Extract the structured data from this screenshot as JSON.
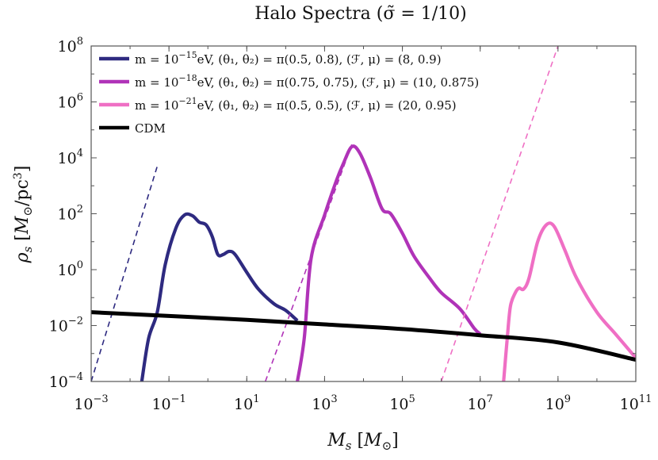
{
  "chart_data": {
    "type": "line",
    "title": "Halo Spectra (σ̃ = 1/10)",
    "xlabel": "M_s [M_⊙]",
    "ylabel": "ρ_s [M_⊙/pc³]",
    "x_scale": "log",
    "y_scale": "log",
    "xlim": [
      0.001,
      100000000000
    ],
    "ylim": [
      0.0001,
      100000000
    ],
    "x_ticks": [
      {
        "value": 0.001,
        "label": "10^-3"
      },
      {
        "value": 0.1,
        "label": "10^-1"
      },
      {
        "value": 10,
        "label": "10^1"
      },
      {
        "value": 1000,
        "label": "10^3"
      },
      {
        "value": 100000,
        "label": "10^5"
      },
      {
        "value": 10000000,
        "label": "10^7"
      },
      {
        "value": 1000000000,
        "label": "10^9"
      },
      {
        "value": 100000000000,
        "label": "10^11"
      }
    ],
    "y_ticks": [
      {
        "value": 0.0001,
        "label": "10^-4"
      },
      {
        "value": 0.01,
        "label": "10^-2"
      },
      {
        "value": 1,
        "label": "10^0"
      },
      {
        "value": 100,
        "label": "10^2"
      },
      {
        "value": 10000,
        "label": "10^4"
      },
      {
        "value": 1000000,
        "label": "10^6"
      },
      {
        "value": 100000000,
        "label": "10^8"
      }
    ],
    "grid": false,
    "legend_position": "top-left",
    "series": [
      {
        "name": "m = 10^-15 eV, (θ1, θ2) = π(0.5, 0.8), (F, μ) = (8, 0.9)",
        "color": "#2e2a80",
        "style": "solid",
        "points": [
          [
            0.02,
            0.0001
          ],
          [
            0.03,
            0.0035
          ],
          [
            0.05,
            0.03
          ],
          [
            0.08,
            1.5
          ],
          [
            0.15,
            30
          ],
          [
            0.25,
            90
          ],
          [
            0.4,
            85
          ],
          [
            0.6,
            50
          ],
          [
            0.9,
            40
          ],
          [
            1.3,
            15
          ],
          [
            1.8,
            3.5
          ],
          [
            2.5,
            3.5
          ],
          [
            3.5,
            4.5
          ],
          [
            5,
            3.5
          ],
          [
            10,
            0.8
          ],
          [
            20,
            0.2
          ],
          [
            50,
            0.06
          ],
          [
            100,
            0.035
          ],
          [
            200,
            0.015
          ]
        ]
      },
      {
        "name": "m = 10^-15 eV, (θ1, θ2) = π(0.5, 0.8), (F, μ) = (8, 0.9)",
        "color": "#2e2a80",
        "style": "dashed",
        "points": [
          [
            0.001,
            0.0001
          ],
          [
            0.05,
            5000
          ]
        ]
      },
      {
        "name": "m = 10^-18 eV, (θ1, θ2) = π(0.75, 0.75), (F, μ) = (10, 0.875)",
        "color": "#b033b8",
        "style": "solid",
        "points": [
          [
            200,
            0.0001
          ],
          [
            300,
            0.0035
          ],
          [
            450,
            2.5
          ],
          [
            1000,
            90
          ],
          [
            2000,
            1500
          ],
          [
            3000,
            6000
          ],
          [
            5000,
            25000
          ],
          [
            8000,
            15000
          ],
          [
            15000,
            2000
          ],
          [
            30000,
            150
          ],
          [
            50000,
            100
          ],
          [
            100000,
            20
          ],
          [
            200000,
            3
          ],
          [
            500000,
            0.5
          ],
          [
            1000000,
            0.15
          ],
          [
            3000000,
            0.04
          ],
          [
            7000000,
            0.008
          ],
          [
            10000000,
            0.005
          ]
        ]
      },
      {
        "name": "m = 10^-18 eV, (θ1, θ2) = π(0.75, 0.75), (F, μ) = (10, 0.875)",
        "color": "#b033b8",
        "style": "dashed",
        "points": [
          [
            30,
            0.0001
          ],
          [
            5000,
            30000
          ]
        ]
      },
      {
        "name": "m = 10^-21 eV, (θ1, θ2) = π(0.5, 0.5), (F, μ) = (20, 0.95)",
        "color": "#ef6fc4",
        "style": "solid",
        "points": [
          [
            40000000,
            0.0001
          ],
          [
            50000000,
            0.004
          ],
          [
            60000000,
            0.05
          ],
          [
            80000000,
            0.15
          ],
          [
            100000000,
            0.22
          ],
          [
            130000000,
            0.2
          ],
          [
            180000000,
            0.5
          ],
          [
            300000000,
            10
          ],
          [
            500000000,
            40
          ],
          [
            800000000,
            35
          ],
          [
            1500000000,
            5
          ],
          [
            3000000000,
            0.5
          ],
          [
            10000000000,
            0.03
          ],
          [
            30000000000,
            0.005
          ],
          [
            100000000000,
            0.0007
          ]
        ]
      },
      {
        "name": "m = 10^-21 eV, (θ1, θ2) = π(0.5, 0.5), (F, μ) = (20, 0.95)",
        "color": "#ef6fc4",
        "style": "dashed",
        "points": [
          [
            1000000,
            0.0001
          ],
          [
            1000000000,
            100000000
          ]
        ]
      },
      {
        "name": "CDM",
        "color": "#000000",
        "style": "solid",
        "points": [
          [
            0.001,
            0.03
          ],
          [
            0.1,
            0.022
          ],
          [
            10,
            0.016
          ],
          [
            1000,
            0.011
          ],
          [
            100000,
            0.0075
          ],
          [
            10000000,
            0.0045
          ],
          [
            1000000000,
            0.0025
          ],
          [
            100000000000,
            0.0006
          ]
        ]
      }
    ],
    "legend": [
      {
        "color": "#2e2a80",
        "prefix": "m = 10",
        "exp": "−15",
        "suffix": "eV, (θ₁, θ₂) = π(0.5, 0.8), (ℱ, μ) = (8, 0.9)"
      },
      {
        "color": "#b033b8",
        "prefix": "m = 10",
        "exp": "−18",
        "suffix": "eV, (θ₁, θ₂) = π(0.75, 0.75), (ℱ, μ) = (10, 0.875)"
      },
      {
        "color": "#ef6fc4",
        "prefix": "m = 10",
        "exp": "−21",
        "suffix": "eV, (θ₁, θ₂) = π(0.5, 0.5), (ℱ, μ) = (20, 0.95)"
      },
      {
        "color": "#000000",
        "prefix": "CDM",
        "exp": "",
        "suffix": ""
      }
    ]
  }
}
